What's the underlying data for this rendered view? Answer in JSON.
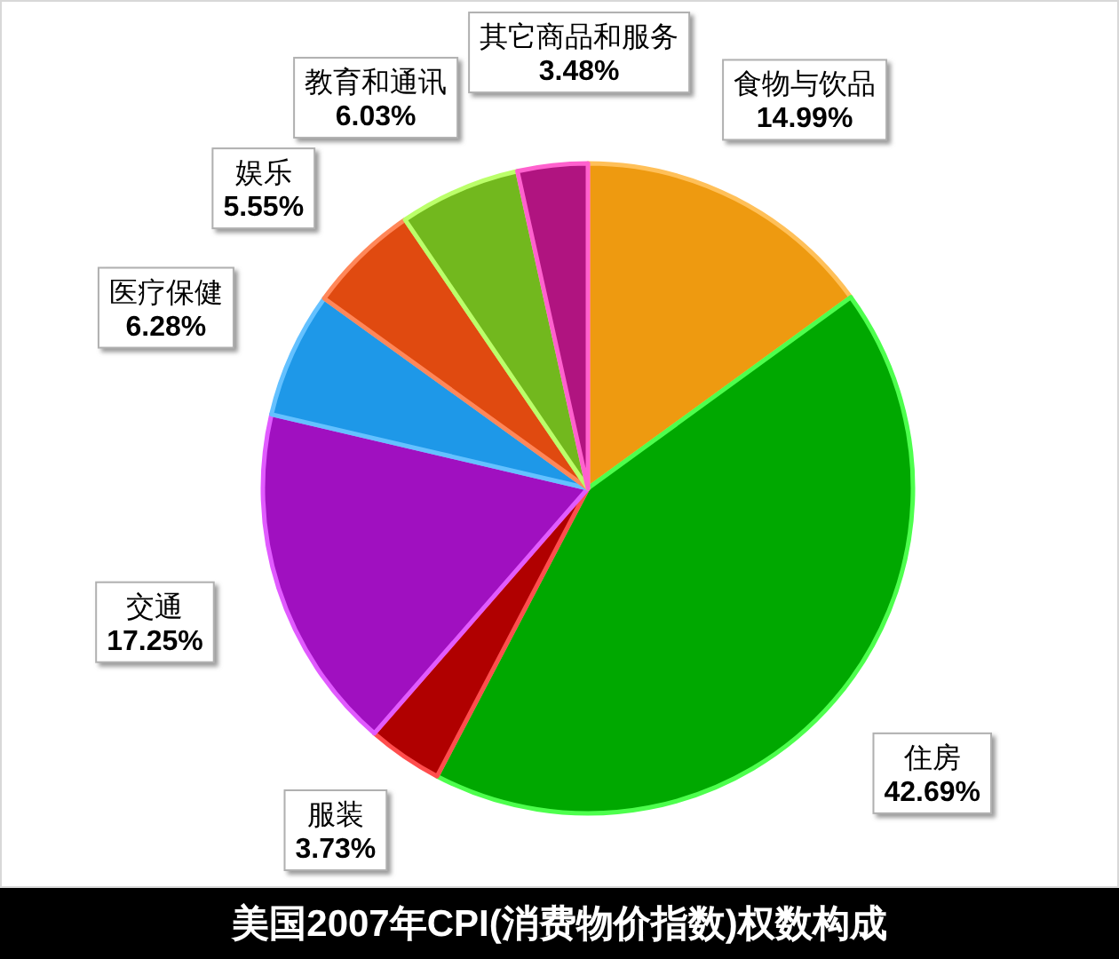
{
  "chart_data": {
    "type": "pie",
    "title": "美国2007年CPI(消费物价指数)权数构成",
    "categories": [
      "食物与饮品",
      "住房",
      "服装",
      "交通",
      "医疗保健",
      "娱乐",
      "教育和通讯",
      "其它商品和服务"
    ],
    "values": [
      14.99,
      42.69,
      3.73,
      17.25,
      6.28,
      5.55,
      6.03,
      3.48
    ],
    "value_labels": [
      "14.99%",
      "42.69%",
      "3.73%",
      "17.25%",
      "6.28%",
      "5.55%",
      "6.03%",
      "3.48%"
    ],
    "colors": [
      "#ee9a10",
      "#00a800",
      "#b00000",
      "#a010c0",
      "#1e98e8",
      "#e04a10",
      "#72b81e",
      "#b01480"
    ]
  }
}
